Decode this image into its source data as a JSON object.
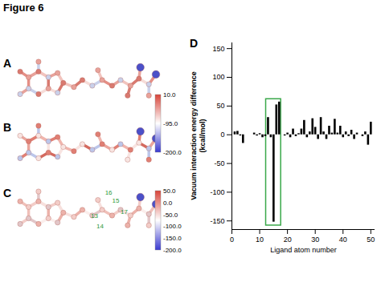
{
  "title": "Figure 6",
  "panels": [
    {
      "label": "A"
    },
    {
      "label": "B",
      "colorbar": {
        "range": [
          -200,
          10
        ],
        "ticks": [
          {
            "value": 10,
            "label": "10.0"
          },
          {
            "value": -95,
            "label": "-95.0"
          },
          {
            "value": -200,
            "label": "-200.0"
          }
        ]
      }
    },
    {
      "label": "C",
      "atom_labels": [
        13,
        14,
        15,
        16,
        17
      ],
      "colorbar": {
        "range": [
          -200,
          50
        ],
        "ticks": [
          {
            "value": 50,
            "label": "50.0"
          },
          {
            "value": 0,
            "label": "0.0"
          },
          {
            "value": -50,
            "label": "-50.0"
          },
          {
            "value": -100,
            "label": "-100.0"
          },
          {
            "value": -150,
            "label": "-150.0"
          },
          {
            "value": -200,
            "label": "-200.0"
          }
        ]
      }
    }
  ],
  "chart_data": {
    "type": "bar",
    "panel_label": "D",
    "x_label": "Ligand atom number",
    "y_label": "Vacuum interaction energy difference (kcal/mol)",
    "x": [
      1,
      2,
      3,
      4,
      5,
      6,
      7,
      8,
      9,
      10,
      11,
      12,
      13,
      14,
      15,
      16,
      17,
      18,
      19,
      20,
      21,
      22,
      23,
      24,
      25,
      26,
      27,
      28,
      29,
      30,
      31,
      32,
      33,
      34,
      35,
      36,
      37,
      38,
      39,
      40,
      41,
      42,
      43,
      44,
      45,
      46,
      47,
      48,
      49,
      50
    ],
    "values": [
      5,
      6,
      -2,
      -15,
      0,
      0,
      0,
      3,
      -2,
      2,
      -5,
      -3,
      30,
      -5,
      -152,
      52,
      57,
      0,
      -2,
      3,
      -5,
      10,
      -3,
      2,
      10,
      25,
      -5,
      5,
      28,
      13,
      -8,
      30,
      5,
      -8,
      15,
      3,
      27,
      3,
      15,
      -5,
      5,
      -3,
      8,
      -8,
      3,
      0,
      -3,
      5,
      -18,
      22
    ],
    "color": "#000000",
    "xlim": [
      0,
      51.5
    ],
    "xticks": [
      0,
      10,
      20,
      30,
      40,
      50
    ],
    "ylim": [
      -165,
      160
    ],
    "yticks": [
      -150,
      -100,
      -50,
      0,
      50,
      100,
      150
    ],
    "grid": false,
    "highlight": {
      "x": [
        12.3,
        17.7
      ],
      "y": [
        -158,
        62
      ],
      "color": "#3aa84a"
    }
  }
}
